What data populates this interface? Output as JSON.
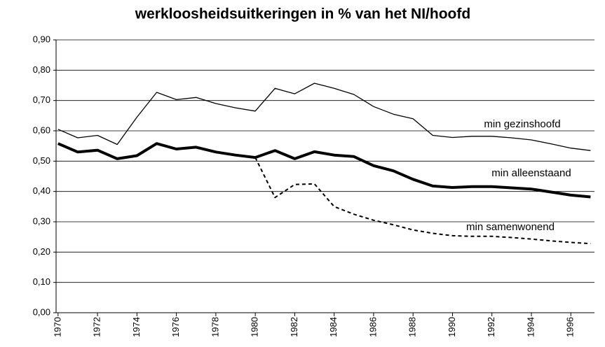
{
  "chart_data": {
    "type": "line",
    "title": "werkloosheidsuitkeringen in % van het NI/hoofd",
    "x": [
      1970,
      1971,
      1972,
      1973,
      1974,
      1975,
      1976,
      1977,
      1978,
      1979,
      1980,
      1981,
      1982,
      1983,
      1984,
      1985,
      1986,
      1987,
      1988,
      1989,
      1990,
      1991,
      1992,
      1993,
      1994,
      1995,
      1996,
      1997
    ],
    "xlim": [
      1969.9,
      1997.2
    ],
    "xticks": [
      1970,
      1972,
      1974,
      1976,
      1978,
      1980,
      1982,
      1984,
      1986,
      1988,
      1990,
      1992,
      1994,
      1996
    ],
    "ylim": [
      0,
      0.9
    ],
    "yticks": [
      {
        "value": 0,
        "label": "0,00"
      },
      {
        "value": 0.1,
        "label": "0,10"
      },
      {
        "value": 0.2,
        "label": "0,20"
      },
      {
        "value": 0.3,
        "label": "0,30"
      },
      {
        "value": 0.4,
        "label": "0,40"
      },
      {
        "value": 0.5,
        "label": "0,50"
      },
      {
        "value": 0.6,
        "label": "0,60"
      },
      {
        "value": 0.7,
        "label": "0,70"
      },
      {
        "value": 0.8,
        "label": "0,80"
      },
      {
        "value": 0.9,
        "label": "0,90"
      }
    ],
    "grid": true,
    "series": [
      {
        "name": "min gezinshoofd",
        "color": "#000000",
        "linewidth": 1.3,
        "linestyle": "solid",
        "values": [
          0.605,
          0.577,
          0.585,
          0.555,
          0.645,
          0.727,
          0.703,
          0.71,
          0.69,
          0.676,
          0.665,
          0.74,
          0.722,
          0.757,
          0.74,
          0.72,
          0.68,
          0.655,
          0.64,
          0.585,
          0.578,
          0.582,
          0.582,
          0.577,
          0.57,
          0.557,
          0.543,
          0.535
        ]
      },
      {
        "name": "min alleenstaand",
        "color": "#000000",
        "linewidth": 4,
        "linestyle": "solid",
        "values": [
          0.558,
          0.53,
          0.536,
          0.508,
          0.518,
          0.558,
          0.54,
          0.546,
          0.53,
          0.52,
          0.512,
          0.535,
          0.508,
          0.531,
          0.52,
          0.515,
          0.485,
          0.468,
          0.44,
          0.418,
          0.413,
          0.416,
          0.416,
          0.412,
          0.408,
          0.398,
          0.388,
          0.382
        ]
      },
      {
        "name": "min samenwonend",
        "color": "#000000",
        "linewidth": 2,
        "linestyle": "dashed",
        "values": [
          null,
          null,
          null,
          null,
          null,
          null,
          null,
          null,
          null,
          null,
          0.512,
          0.38,
          0.423,
          0.425,
          0.35,
          0.325,
          0.305,
          0.29,
          0.273,
          0.262,
          0.254,
          0.252,
          0.252,
          0.248,
          0.243,
          0.237,
          0.232,
          0.228
        ]
      }
    ]
  }
}
